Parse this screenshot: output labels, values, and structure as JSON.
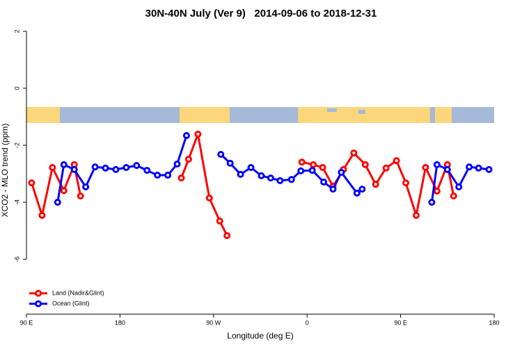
{
  "chart_data": {
    "type": "line",
    "title": "30N-40N July (Ver 9)   2014-09-06 to 2018-12-31",
    "x_label": "Longitude (deg E)",
    "y_label": "XCO2 - MLO trend (ppm)",
    "xlim": [
      90,
      540
    ],
    "xticks": [
      {
        "value": 90,
        "label": "90 E"
      },
      180,
      {
        "value": 270,
        "label": "90 W"
      },
      {
        "value": 360,
        "label": "0"
      },
      {
        "value": 450,
        "label": "90 E"
      },
      180
    ],
    "ylim": [
      -8,
      2.3
    ],
    "yticks": [
      2,
      0,
      -2,
      -4,
      -6
    ],
    "legend": "bottom-left",
    "series": [
      {
        "name": "Land (Nadir&Glint)",
        "color": "#ff0000",
        "x": [
          95,
          105,
          115,
          126,
          136,
          142,
          190,
          239,
          246,
          255,
          266,
          276,
          283,
          320,
          355,
          366,
          375,
          385,
          395,
          405,
          416,
          426,
          436,
          446,
          455,
          465,
          474,
          485,
          495,
          501
        ],
        "values": [
          -3.32,
          -4.46,
          -2.78,
          -3.59,
          -2.68,
          -3.78,
          null,
          -3.15,
          -2.49,
          -1.61,
          -3.85,
          -4.66,
          -5.17,
          null,
          -2.59,
          -2.68,
          -2.78,
          -3.44,
          -2.85,
          -2.27,
          -2.68,
          -3.37,
          -2.8,
          -2.54,
          -3.32,
          -4.46,
          -2.78,
          -3.61,
          -2.68,
          -3.78
        ]
      },
      {
        "name": "Ocean (Glint)",
        "color": "#0000ff",
        "x": [
          120,
          126,
          136,
          147,
          156,
          166,
          176,
          186,
          196,
          206,
          216,
          226,
          235,
          244,
          260,
          277,
          286,
          296,
          306,
          316,
          325,
          334,
          345,
          354,
          365,
          376,
          385,
          393,
          408,
          413,
          450,
          480,
          485,
          495,
          506,
          516,
          525,
          535
        ],
        "values": [
          -4.0,
          -2.68,
          -2.85,
          -3.46,
          -2.76,
          -2.8,
          -2.85,
          -2.78,
          -2.71,
          -2.88,
          -3.05,
          -3.05,
          -2.66,
          -1.66,
          null,
          -2.32,
          -2.63,
          -3.02,
          -2.78,
          -3.07,
          -3.15,
          -3.24,
          -3.2,
          -2.9,
          -2.88,
          -3.29,
          -3.54,
          -2.95,
          -3.68,
          -3.54,
          null,
          -4.0,
          -2.68,
          -2.85,
          -3.46,
          -2.76,
          -2.8,
          -2.85
        ]
      }
    ]
  }
}
